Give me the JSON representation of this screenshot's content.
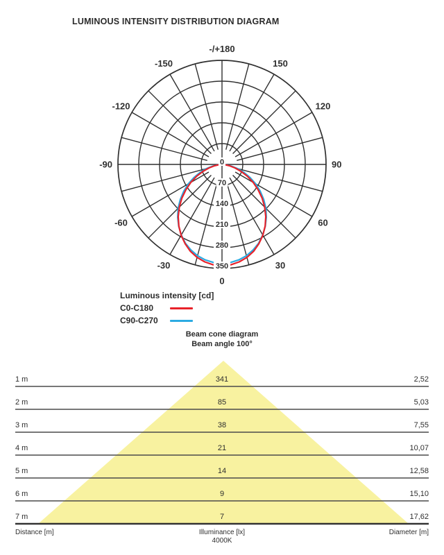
{
  "title": "LUMINOUS INTENSITY DISTRIBUTION DIAGRAM",
  "colors": {
    "c0": "#e8222a",
    "c90": "#2cabe2",
    "grid": "#2f2f2f",
    "cone": "#f8f2a0",
    "table_line": "#4a4a4a",
    "table_line_last": "#333333",
    "text": "#2e2e2e"
  },
  "legend": {
    "title": "Luminous intensity [cd]",
    "items": [
      {
        "label": "C0-C180",
        "color_key": "c0"
      },
      {
        "label": "C90-C270",
        "color_key": "c90"
      }
    ]
  },
  "chart_data": [
    {
      "type": "polar-intensity",
      "title": "Luminous intensity [cd]",
      "unit": "cd",
      "max_value": 350,
      "ring_values": [
        0,
        70,
        140,
        210,
        280,
        350
      ],
      "angle_step_deg": 15,
      "angle_labels": [
        {
          "angle": 180,
          "label": "-/+180"
        },
        {
          "angle": -150,
          "label": "-150"
        },
        {
          "angle": 150,
          "label": "150"
        },
        {
          "angle": -120,
          "label": "-120"
        },
        {
          "angle": 120,
          "label": "120"
        },
        {
          "angle": -90,
          "label": "-90"
        },
        {
          "angle": 90,
          "label": "90"
        },
        {
          "angle": -60,
          "label": "-60"
        },
        {
          "angle": 60,
          "label": "60"
        },
        {
          "angle": -30,
          "label": "-30"
        },
        {
          "angle": 30,
          "label": "30"
        },
        {
          "angle": 0,
          "label": "0"
        }
      ],
      "series": [
        {
          "name": "C0-C180",
          "color_key": "c0",
          "points": [
            [
              -90,
              0
            ],
            [
              -85,
              9
            ],
            [
              -80,
              25
            ],
            [
              -75,
              45
            ],
            [
              -70,
              68
            ],
            [
              -65,
              94
            ],
            [
              -60,
              121
            ],
            [
              -55,
              148
            ],
            [
              -50,
              176
            ],
            [
              -45,
              203
            ],
            [
              -40,
              229
            ],
            [
              -35,
              253
            ],
            [
              -30,
              275
            ],
            [
              -25,
              294
            ],
            [
              -20,
              311
            ],
            [
              -15,
              324
            ],
            [
              -10,
              333
            ],
            [
              -5,
              339
            ],
            [
              0,
              341
            ],
            [
              5,
              339
            ],
            [
              10,
              333
            ],
            [
              15,
              324
            ],
            [
              20,
              311
            ],
            [
              25,
              294
            ],
            [
              30,
              275
            ],
            [
              35,
              253
            ],
            [
              40,
              229
            ],
            [
              45,
              203
            ],
            [
              50,
              176
            ],
            [
              55,
              148
            ],
            [
              60,
              121
            ],
            [
              65,
              94
            ],
            [
              70,
              68
            ],
            [
              75,
              45
            ],
            [
              80,
              25
            ],
            [
              85,
              9
            ],
            [
              90,
              0
            ]
          ]
        },
        {
          "name": "C90-C270",
          "color_key": "c90",
          "points": [
            [
              -90,
              0
            ],
            [
              -85,
              12
            ],
            [
              -80,
              31
            ],
            [
              -75,
              54
            ],
            [
              -70,
              78
            ],
            [
              -65,
              104
            ],
            [
              -60,
              131
            ],
            [
              -55,
              157
            ],
            [
              -50,
              183
            ],
            [
              -45,
              209
            ],
            [
              -40,
              232
            ],
            [
              -35,
              254
            ],
            [
              -30,
              274
            ],
            [
              -25,
              292
            ],
            [
              -20,
              306
            ],
            [
              -15,
              318
            ],
            [
              -10,
              326
            ],
            [
              -5,
              331
            ],
            [
              0,
              333
            ],
            [
              5,
              331
            ],
            [
              10,
              326
            ],
            [
              15,
              318
            ],
            [
              20,
              306
            ],
            [
              25,
              292
            ],
            [
              30,
              274
            ],
            [
              35,
              254
            ],
            [
              40,
              232
            ],
            [
              45,
              209
            ],
            [
              50,
              183
            ],
            [
              55,
              157
            ],
            [
              60,
              131
            ],
            [
              65,
              104
            ],
            [
              70,
              78
            ],
            [
              75,
              54
            ],
            [
              80,
              31
            ],
            [
              85,
              12
            ],
            [
              90,
              0
            ]
          ]
        }
      ]
    },
    {
      "type": "beam-cone-table",
      "title": "Beam cone diagram",
      "subtitle": "Beam angle 100°",
      "beam_angle_deg": 100,
      "rows": [
        {
          "distance": "1 m",
          "illuminance": "341",
          "diameter": "2,52"
        },
        {
          "distance": "2 m",
          "illuminance": "85",
          "diameter": "5,03"
        },
        {
          "distance": "3 m",
          "illuminance": "38",
          "diameter": "7,55"
        },
        {
          "distance": "4 m",
          "illuminance": "21",
          "diameter": "10,07"
        },
        {
          "distance": "5 m",
          "illuminance": "14",
          "diameter": "12,58"
        },
        {
          "distance": "6 m",
          "illuminance": "9",
          "diameter": "15,10"
        },
        {
          "distance": "7 m",
          "illuminance": "7",
          "diameter": "17,62"
        }
      ],
      "footer": {
        "left": "Distance [m]",
        "center": "Illuminance [lx]",
        "center2": "4000K",
        "right": "Diameter [m]"
      }
    }
  ]
}
